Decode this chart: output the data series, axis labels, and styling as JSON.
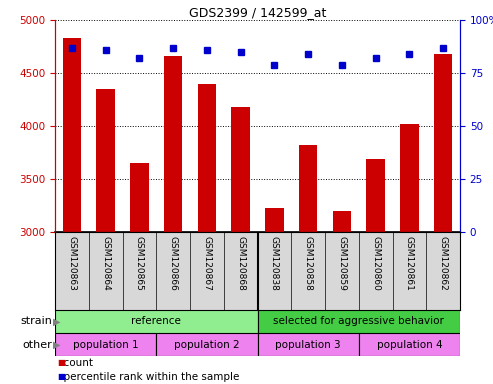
{
  "title": "GDS2399 / 142599_at",
  "samples": [
    "GSM120863",
    "GSM120864",
    "GSM120865",
    "GSM120866",
    "GSM120867",
    "GSM120868",
    "GSM120838",
    "GSM120858",
    "GSM120859",
    "GSM120860",
    "GSM120861",
    "GSM120862"
  ],
  "counts": [
    4830,
    4350,
    3650,
    4660,
    4400,
    4180,
    3230,
    3820,
    3200,
    3690,
    4020,
    4680
  ],
  "percentile": [
    87,
    86,
    82,
    87,
    86,
    85,
    79,
    84,
    79,
    82,
    84,
    87
  ],
  "ylim_left": [
    3000,
    5000
  ],
  "ylim_right": [
    0,
    100
  ],
  "yticks_left": [
    3000,
    3500,
    4000,
    4500,
    5000
  ],
  "yticks_right": [
    0,
    25,
    50,
    75,
    100
  ],
  "bar_color": "#cc0000",
  "dot_color": "#0000cc",
  "strain_labels": [
    {
      "text": "reference",
      "start": 0,
      "end": 6,
      "color": "#90ee90"
    },
    {
      "text": "selected for aggressive behavior",
      "start": 6,
      "end": 12,
      "color": "#44cc44"
    }
  ],
  "other_labels": [
    {
      "text": "population 1",
      "start": 0,
      "end": 3,
      "color": "#ee82ee"
    },
    {
      "text": "population 2",
      "start": 3,
      "end": 6,
      "color": "#ee82ee"
    },
    {
      "text": "population 3",
      "start": 6,
      "end": 9,
      "color": "#ee82ee"
    },
    {
      "text": "population 4",
      "start": 9,
      "end": 12,
      "color": "#ee82ee"
    }
  ],
  "legend_count_color": "#cc0000",
  "legend_dot_color": "#0000cc",
  "row_strain_label": "strain",
  "row_other_label": "other",
  "xtick_bg": "#d8d8d8",
  "fig_width": 4.93,
  "fig_height": 3.84,
  "dpi": 100
}
